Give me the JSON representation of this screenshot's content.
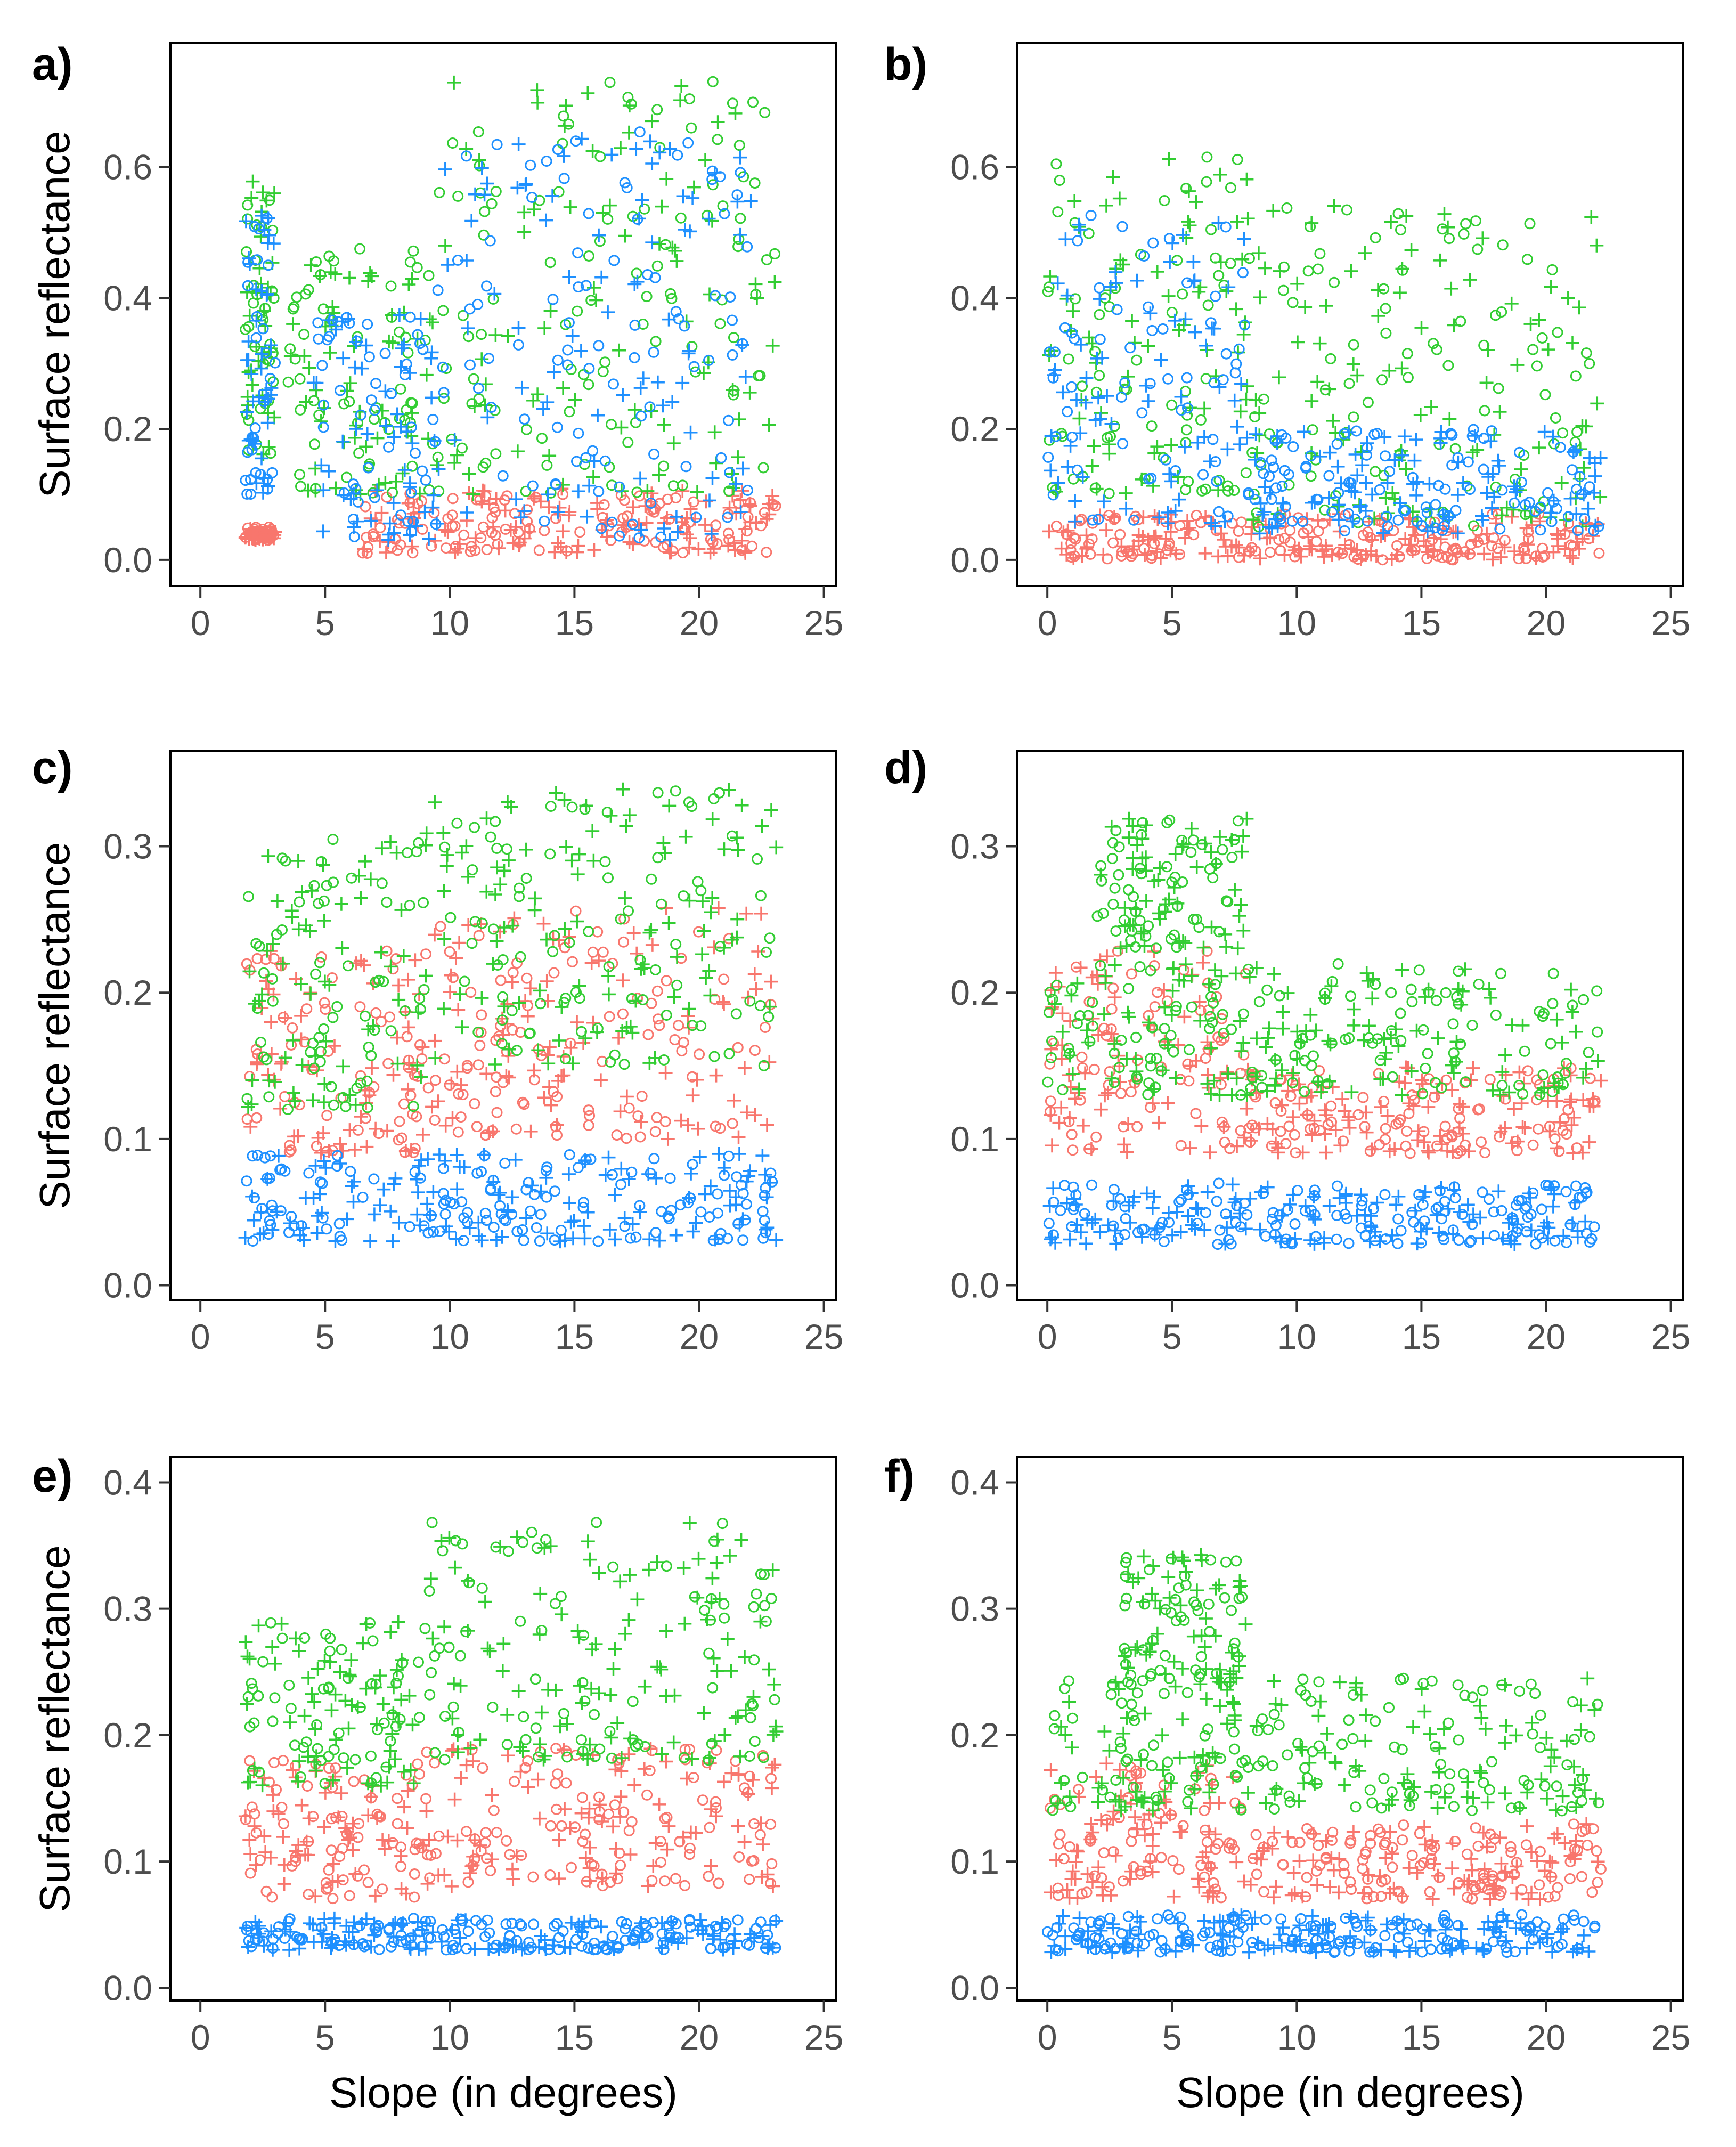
{
  "figure": {
    "y_axis_title": "Surface reflectance",
    "x_axis_title": "Slope (in degrees)",
    "colors": {
      "red": "#F8766D",
      "green": "#32CD32",
      "blue": "#1E90FF"
    },
    "marker_types": [
      "circle",
      "plus"
    ]
  },
  "chart_data": [
    {
      "type": "scatter",
      "panel": "a)",
      "xlabel": "",
      "ylabel": "Surface reflectance",
      "xlim": [
        -1.2,
        25.5
      ],
      "ylim": [
        -0.04,
        0.79
      ],
      "xticks": [
        0,
        5,
        10,
        15,
        20,
        25
      ],
      "yticks": [
        0.0,
        0.2,
        0.4,
        0.6
      ],
      "ytick_labels": [
        "0.0",
        "0.2",
        "0.4",
        "0.6"
      ],
      "series": [
        {
          "name": "red",
          "color": "#F8766D",
          "x_range": [
            1.8,
            23.1
          ],
          "markers": "circle+plus",
          "clouds": [
            {
              "x": [
                1.8,
                3.0
              ],
              "y": [
                0.03,
                0.05
              ]
            },
            {
              "x": [
                6.5,
                23.1
              ],
              "y": [
                0.01,
                0.11
              ]
            }
          ]
        },
        {
          "name": "green",
          "color": "#32CD32",
          "x_range": [
            1.8,
            23.1
          ],
          "markers": "circle+plus",
          "clouds": [
            {
              "x": [
                1.8,
                3.0
              ],
              "y": [
                0.16,
                0.58
              ]
            },
            {
              "x": [
                3.5,
                9.5
              ],
              "y": [
                0.1,
                0.48
              ]
            },
            {
              "x": [
                9.5,
                23.1
              ],
              "y": [
                0.1,
                0.74
              ]
            }
          ]
        },
        {
          "name": "blue",
          "color": "#1E90FF",
          "x_range": [
            1.8,
            22.2
          ],
          "markers": "circle+plus",
          "clouds": [
            {
              "x": [
                1.8,
                3.0
              ],
              "y": [
                0.1,
                0.53
              ]
            },
            {
              "x": [
                4.5,
                9.5
              ],
              "y": [
                0.03,
                0.38
              ]
            },
            {
              "x": [
                9.5,
                22.2
              ],
              "y": [
                0.03,
                0.66
              ]
            }
          ]
        }
      ]
    },
    {
      "type": "scatter",
      "panel": "b)",
      "xlabel": "",
      "ylabel": "",
      "xlim": [
        -1.2,
        25.5
      ],
      "ylim": [
        -0.04,
        0.79
      ],
      "xticks": [
        0,
        5,
        10,
        15,
        20,
        25
      ],
      "yticks": [
        0.0,
        0.2,
        0.4,
        0.6
      ],
      "ytick_labels": [
        "0.0",
        "0.2",
        "0.4",
        "0.6"
      ],
      "series": [
        {
          "name": "red",
          "color": "#F8766D",
          "x_range": [
            0.0,
            22.2
          ],
          "markers": "circle+plus",
          "clouds": [
            {
              "x": [
                0.0,
                22.2
              ],
              "y": [
                0.0,
                0.07
              ]
            }
          ]
        },
        {
          "name": "green",
          "color": "#32CD32",
          "x_range": [
            0.0,
            22.2
          ],
          "markers": "circle+plus",
          "clouds": [
            {
              "x": [
                0.0,
                8.0
              ],
              "y": [
                0.1,
                0.62
              ]
            },
            {
              "x": [
                8.0,
                22.2
              ],
              "y": [
                0.05,
                0.55
              ]
            }
          ]
        },
        {
          "name": "blue",
          "color": "#1E90FF",
          "x_range": [
            0.0,
            22.2
          ],
          "markers": "circle+plus",
          "clouds": [
            {
              "x": [
                0.0,
                8.0
              ],
              "y": [
                0.05,
                0.55
              ]
            },
            {
              "x": [
                8.0,
                22.2
              ],
              "y": [
                0.04,
                0.2
              ]
            }
          ]
        }
      ]
    },
    {
      "type": "scatter",
      "panel": "c)",
      "xlabel": "",
      "ylabel": "Surface reflectance",
      "xlim": [
        -1.2,
        25.5
      ],
      "ylim": [
        -0.01,
        0.365
      ],
      "xticks": [
        0,
        5,
        10,
        15,
        20,
        25
      ],
      "yticks": [
        0.0,
        0.1,
        0.2,
        0.3
      ],
      "ytick_labels": [
        "0.0",
        "0.1",
        "0.2",
        "0.3"
      ],
      "series": [
        {
          "name": "red",
          "color": "#F8766D",
          "x_range": [
            1.8,
            23.1
          ],
          "markers": "circle+plus",
          "clouds": [
            {
              "x": [
                1.8,
                9.0
              ],
              "y": [
                0.09,
                0.23
              ]
            },
            {
              "x": [
                9.0,
                23.1
              ],
              "y": [
                0.1,
                0.26
              ]
            }
          ]
        },
        {
          "name": "green",
          "color": "#32CD32",
          "x_range": [
            1.8,
            23.1
          ],
          "markers": "circle+plus",
          "clouds": [
            {
              "x": [
                1.8,
                9.0
              ],
              "y": [
                0.12,
                0.31
              ]
            },
            {
              "x": [
                9.0,
                23.1
              ],
              "y": [
                0.15,
                0.34
              ]
            }
          ]
        },
        {
          "name": "blue",
          "color": "#1E90FF",
          "x_range": [
            1.8,
            23.1
          ],
          "markers": "circle+plus",
          "clouds": [
            {
              "x": [
                1.8,
                23.1
              ],
              "y": [
                0.03,
                0.09
              ]
            }
          ]
        }
      ]
    },
    {
      "type": "scatter",
      "panel": "d)",
      "xlabel": "",
      "ylabel": "",
      "xlim": [
        -1.2,
        25.5
      ],
      "ylim": [
        -0.01,
        0.365
      ],
      "xticks": [
        0,
        5,
        10,
        15,
        20,
        25
      ],
      "yticks": [
        0.0,
        0.1,
        0.2,
        0.3
      ],
      "ytick_labels": [
        "0.0",
        "0.1",
        "0.2",
        "0.3"
      ],
      "series": [
        {
          "name": "red",
          "color": "#F8766D",
          "x_range": [
            0.0,
            22.2
          ],
          "markers": "circle+plus",
          "clouds": [
            {
              "x": [
                0.0,
                8.0
              ],
              "y": [
                0.09,
                0.23
              ]
            },
            {
              "x": [
                8.0,
                22.2
              ],
              "y": [
                0.09,
                0.15
              ]
            }
          ]
        },
        {
          "name": "green",
          "color": "#32CD32",
          "x_range": [
            0.0,
            22.2
          ],
          "markers": "circle+plus",
          "clouds": [
            {
              "x": [
                0.0,
                22.2
              ],
              "y": [
                0.13,
                0.22
              ]
            },
            {
              "x": [
                2.0,
                8.0
              ],
              "y": [
                0.23,
                0.32
              ]
            }
          ]
        },
        {
          "name": "blue",
          "color": "#1E90FF",
          "x_range": [
            0.0,
            22.2
          ],
          "markers": "circle+plus",
          "clouds": [
            {
              "x": [
                0.0,
                22.2
              ],
              "y": [
                0.028,
                0.07
              ]
            }
          ]
        }
      ]
    },
    {
      "type": "scatter",
      "panel": "e)",
      "xlabel": "Slope (in degrees)",
      "ylabel": "Surface reflectance",
      "xlim": [
        -1.2,
        25.5
      ],
      "ylim": [
        -0.01,
        0.42
      ],
      "xticks": [
        0,
        5,
        10,
        15,
        20,
        25
      ],
      "yticks": [
        0.0,
        0.1,
        0.2,
        0.3,
        0.4
      ],
      "ytick_labels": [
        "0.0",
        "0.1",
        "0.2",
        "0.3",
        "0.4"
      ],
      "series": [
        {
          "name": "red",
          "color": "#F8766D",
          "x_range": [
            1.8,
            23.1
          ],
          "markers": "circle+plus",
          "clouds": [
            {
              "x": [
                1.8,
                9.0
              ],
              "y": [
                0.07,
                0.18
              ]
            },
            {
              "x": [
                9.0,
                23.1
              ],
              "y": [
                0.08,
                0.19
              ]
            }
          ]
        },
        {
          "name": "green",
          "color": "#32CD32",
          "x_range": [
            1.8,
            23.1
          ],
          "markers": "circle+plus",
          "clouds": [
            {
              "x": [
                1.8,
                9.0
              ],
              "y": [
                0.16,
                0.29
              ]
            },
            {
              "x": [
                9.0,
                23.1
              ],
              "y": [
                0.18,
                0.37
              ]
            }
          ]
        },
        {
          "name": "blue",
          "color": "#1E90FF",
          "x_range": [
            1.8,
            23.1
          ],
          "markers": "circle+plus",
          "clouds": [
            {
              "x": [
                1.8,
                23.1
              ],
              "y": [
                0.03,
                0.055
              ]
            }
          ]
        }
      ]
    },
    {
      "type": "scatter",
      "panel": "f)",
      "xlabel": "Slope (in degrees)",
      "ylabel": "",
      "xlim": [
        -1.2,
        25.5
      ],
      "ylim": [
        -0.01,
        0.42
      ],
      "xticks": [
        0,
        5,
        10,
        15,
        20,
        25
      ],
      "yticks": [
        0.0,
        0.1,
        0.2,
        0.3,
        0.4
      ],
      "ytick_labels": [
        "0.0",
        "0.1",
        "0.2",
        "0.3",
        "0.4"
      ],
      "series": [
        {
          "name": "red",
          "color": "#F8766D",
          "x_range": [
            0.0,
            22.2
          ],
          "markers": "circle+plus",
          "clouds": [
            {
              "x": [
                0.0,
                8.0
              ],
              "y": [
                0.07,
                0.18
              ]
            },
            {
              "x": [
                8.0,
                22.2
              ],
              "y": [
                0.07,
                0.13
              ]
            }
          ]
        },
        {
          "name": "green",
          "color": "#32CD32",
          "x_range": [
            0.0,
            22.2
          ],
          "markers": "circle+plus",
          "clouds": [
            {
              "x": [
                0.0,
                22.2
              ],
              "y": [
                0.14,
                0.245
              ]
            },
            {
              "x": [
                3.0,
                8.0
              ],
              "y": [
                0.24,
                0.345
              ]
            }
          ]
        },
        {
          "name": "blue",
          "color": "#1E90FF",
          "x_range": [
            0.0,
            22.2
          ],
          "markers": "circle+plus",
          "clouds": [
            {
              "x": [
                0.0,
                22.2
              ],
              "y": [
                0.028,
                0.058
              ]
            }
          ]
        }
      ]
    }
  ]
}
